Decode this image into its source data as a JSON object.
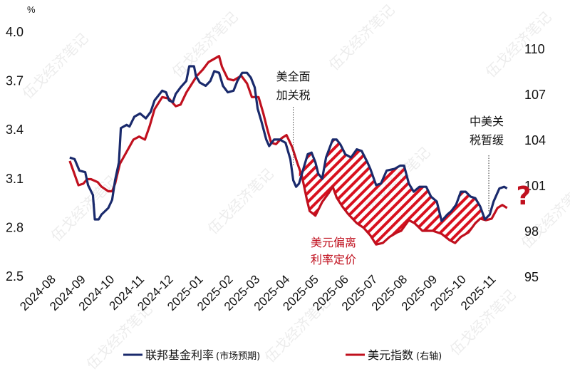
{
  "chart_data": {
    "type": "line",
    "unit_left": "%",
    "left_axis": {
      "ylim": [
        2.5,
        4.0
      ],
      "ticks": [
        "2.5",
        "2.8",
        "3.1",
        "3.4",
        "3.7",
        "4.0"
      ]
    },
    "right_axis": {
      "ylim": [
        95,
        110
      ],
      "ticks": [
        "95",
        "98",
        "101",
        "104",
        "107",
        "110"
      ]
    },
    "x_ticks": [
      "2024-08",
      "2024-09",
      "2024-10",
      "2024-11",
      "2024-12",
      "2025-01",
      "2025-02",
      "2025-03",
      "2025-04",
      "2025-05",
      "2025-06",
      "2025-07",
      "2025-08",
      "2025-09",
      "2025-10",
      "2025-11"
    ],
    "grid": false,
    "legend_position": "bottom",
    "series": [
      {
        "name": "联邦基金利率",
        "name_suffix": "(市场预期)",
        "axis": "left",
        "color": "#1a2a6c",
        "points": [
          [
            "2024-08-15",
            3.23
          ],
          [
            "2024-08-20",
            3.22
          ],
          [
            "2024-08-25",
            3.15
          ],
          [
            "2024-08-31",
            3.14
          ],
          [
            "2024-09-03",
            3.06
          ],
          [
            "2024-09-08",
            3.0
          ],
          [
            "2024-09-10",
            2.85
          ],
          [
            "2024-09-14",
            2.85
          ],
          [
            "2024-09-17",
            2.88
          ],
          [
            "2024-09-24",
            2.92
          ],
          [
            "2024-09-28",
            2.97
          ],
          [
            "2024-10-01",
            3.09
          ],
          [
            "2024-10-05",
            3.2
          ],
          [
            "2024-10-07",
            3.41
          ],
          [
            "2024-10-13",
            3.43
          ],
          [
            "2024-10-16",
            3.42
          ],
          [
            "2024-10-21",
            3.48
          ],
          [
            "2024-10-27",
            3.5
          ],
          [
            "2024-11-02",
            3.47
          ],
          [
            "2024-11-07",
            3.51
          ],
          [
            "2024-11-11",
            3.58
          ],
          [
            "2024-11-19",
            3.64
          ],
          [
            "2024-11-23",
            3.63
          ],
          [
            "2024-11-26",
            3.58
          ],
          [
            "2024-11-30",
            3.57
          ],
          [
            "2024-12-03",
            3.62
          ],
          [
            "2024-12-08",
            3.66
          ],
          [
            "2024-12-14",
            3.7
          ],
          [
            "2024-12-17",
            3.79
          ],
          [
            "2024-12-22",
            3.79
          ],
          [
            "2024-12-24",
            3.73
          ],
          [
            "2024-12-28",
            3.69
          ],
          [
            "2025-01-03",
            3.67
          ],
          [
            "2025-01-08",
            3.7
          ],
          [
            "2025-01-12",
            3.76
          ],
          [
            "2025-01-17",
            3.75
          ],
          [
            "2025-01-21",
            3.67
          ],
          [
            "2025-01-26",
            3.63
          ],
          [
            "2025-02-01",
            3.64
          ],
          [
            "2025-02-05",
            3.7
          ],
          [
            "2025-02-10",
            3.75
          ],
          [
            "2025-02-15",
            3.75
          ],
          [
            "2025-02-19",
            3.72
          ],
          [
            "2025-02-23",
            3.66
          ],
          [
            "2025-02-26",
            3.53
          ],
          [
            "2025-03-02",
            3.45
          ],
          [
            "2025-03-07",
            3.34
          ],
          [
            "2025-03-10",
            3.3
          ],
          [
            "2025-03-15",
            3.34
          ],
          [
            "2025-03-21",
            3.34
          ],
          [
            "2025-03-27",
            3.32
          ],
          [
            "2025-04-01",
            3.22
          ],
          [
            "2025-04-04",
            3.09
          ],
          [
            "2025-04-07",
            3.05
          ],
          [
            "2025-04-10",
            3.07
          ],
          [
            "2025-04-16",
            3.19
          ],
          [
            "2025-04-19",
            3.25
          ],
          [
            "2025-04-23",
            3.26
          ],
          [
            "2025-04-27",
            3.2
          ],
          [
            "2025-04-30",
            3.13
          ],
          [
            "2025-05-04",
            3.1
          ],
          [
            "2025-05-08",
            3.23
          ],
          [
            "2025-05-15",
            3.34
          ],
          [
            "2025-05-19",
            3.34
          ],
          [
            "2025-05-23",
            3.31
          ],
          [
            "2025-05-28",
            3.25
          ],
          [
            "2025-06-03",
            3.23
          ],
          [
            "2025-06-09",
            3.28
          ],
          [
            "2025-06-14",
            3.27
          ],
          [
            "2025-06-20",
            3.2
          ],
          [
            "2025-06-23",
            3.16
          ],
          [
            "2025-06-29",
            3.06
          ],
          [
            "2025-07-04",
            3.07
          ],
          [
            "2025-07-10",
            3.15
          ],
          [
            "2025-07-18",
            3.16
          ],
          [
            "2025-07-24",
            3.18
          ],
          [
            "2025-07-28",
            3.18
          ],
          [
            "2025-08-02",
            3.07
          ],
          [
            "2025-08-07",
            3.02
          ],
          [
            "2025-08-13",
            3.05
          ],
          [
            "2025-08-20",
            3.05
          ],
          [
            "2025-08-25",
            2.99
          ],
          [
            "2025-08-31",
            2.96
          ],
          [
            "2025-09-05",
            2.84
          ],
          [
            "2025-09-11",
            2.88
          ],
          [
            "2025-09-15",
            2.9
          ],
          [
            "2025-09-20",
            2.94
          ],
          [
            "2025-09-25",
            3.02
          ],
          [
            "2025-09-30",
            3.02
          ],
          [
            "2025-10-05",
            2.99
          ],
          [
            "2025-10-10",
            2.98
          ],
          [
            "2025-10-15",
            2.93
          ],
          [
            "2025-10-20",
            2.85
          ],
          [
            "2025-10-25",
            2.88
          ],
          [
            "2025-10-29",
            2.96
          ],
          [
            "2025-11-04",
            3.04
          ],
          [
            "2025-11-09",
            3.05
          ],
          [
            "2025-11-12",
            3.04
          ]
        ]
      },
      {
        "name": "美元指数",
        "name_suffix": "(右轴)",
        "axis": "right",
        "color": "#c0101e",
        "points": [
          [
            "2024-08-15",
            102.6
          ],
          [
            "2024-08-19",
            101.9
          ],
          [
            "2024-08-24",
            101.0
          ],
          [
            "2024-08-29",
            101.1
          ],
          [
            "2024-09-02",
            101.4
          ],
          [
            "2024-09-06",
            101.4
          ],
          [
            "2024-09-13",
            101.2
          ],
          [
            "2024-09-17",
            100.9
          ],
          [
            "2024-09-24",
            100.6
          ],
          [
            "2024-09-28",
            100.6
          ],
          [
            "2024-10-01",
            101.1
          ],
          [
            "2024-10-06",
            102.4
          ],
          [
            "2024-10-13",
            103.2
          ],
          [
            "2024-10-20",
            104.0
          ],
          [
            "2024-10-26",
            104.2
          ],
          [
            "2024-11-01",
            104.0
          ],
          [
            "2024-11-06",
            104.9
          ],
          [
            "2024-11-11",
            106.0
          ],
          [
            "2024-11-19",
            106.8
          ],
          [
            "2024-11-26",
            106.7
          ],
          [
            "2024-12-03",
            106.2
          ],
          [
            "2024-12-08",
            106.3
          ],
          [
            "2024-12-14",
            107.1
          ],
          [
            "2024-12-20",
            107.7
          ],
          [
            "2024-12-25",
            108.2
          ],
          [
            "2024-12-31",
            108.6
          ],
          [
            "2025-01-06",
            109.1
          ],
          [
            "2025-01-17",
            109.5
          ],
          [
            "2025-01-20",
            108.8
          ],
          [
            "2025-01-26",
            108.0
          ],
          [
            "2025-02-01",
            107.9
          ],
          [
            "2025-02-09",
            108.2
          ],
          [
            "2025-02-15",
            107.7
          ],
          [
            "2025-02-20",
            106.8
          ],
          [
            "2025-02-27",
            106.8
          ],
          [
            "2025-03-04",
            105.7
          ],
          [
            "2025-03-08",
            104.7
          ],
          [
            "2025-03-12",
            103.8
          ],
          [
            "2025-03-17",
            103.7
          ],
          [
            "2025-03-23",
            104.1
          ],
          [
            "2025-03-28",
            104.3
          ],
          [
            "2025-04-03",
            103.5
          ],
          [
            "2025-04-08",
            102.5
          ],
          [
            "2025-04-13",
            101.6
          ],
          [
            "2025-04-18",
            100.1
          ],
          [
            "2025-04-21",
            99.3
          ],
          [
            "2025-04-27",
            99.0
          ],
          [
            "2025-05-04",
            99.9
          ],
          [
            "2025-05-11",
            100.5
          ],
          [
            "2025-05-15",
            100.9
          ],
          [
            "2025-05-19",
            100.2
          ],
          [
            "2025-05-25",
            99.6
          ],
          [
            "2025-05-31",
            99.1
          ],
          [
            "2025-06-09",
            98.5
          ],
          [
            "2025-06-16",
            98.2
          ],
          [
            "2025-06-23",
            97.7
          ],
          [
            "2025-06-29",
            97.1
          ],
          [
            "2025-07-06",
            97.2
          ],
          [
            "2025-07-13",
            97.6
          ],
          [
            "2025-07-21",
            97.9
          ],
          [
            "2025-07-25",
            98.0
          ],
          [
            "2025-08-02",
            98.7
          ],
          [
            "2025-08-08",
            98.5
          ],
          [
            "2025-08-16",
            98.0
          ],
          [
            "2025-08-27",
            98.0
          ],
          [
            "2025-09-05",
            97.8
          ],
          [
            "2025-09-13",
            97.4
          ],
          [
            "2025-09-19",
            97.2
          ],
          [
            "2025-09-25",
            97.6
          ],
          [
            "2025-10-03",
            97.9
          ],
          [
            "2025-10-10",
            98.5
          ],
          [
            "2025-10-15",
            98.8
          ],
          [
            "2025-10-21",
            98.7
          ],
          [
            "2025-10-27",
            98.8
          ],
          [
            "2025-11-02",
            99.5
          ],
          [
            "2025-11-07",
            99.7
          ],
          [
            "2025-11-12",
            99.5
          ]
        ]
      }
    ],
    "shaded_region": {
      "from": "2025-04-10",
      "to": "2025-10-20",
      "style": "red diagonal hatch between series",
      "label": "美元偏离利率定价"
    },
    "annotations": [
      {
        "text_line1": "美全面",
        "text_line2": "加关税",
        "date": "2025-04-04"
      },
      {
        "text_line1": "中美关",
        "text_line2": "税暂缓",
        "date": "2025-10-24"
      }
    ],
    "question_mark": "?"
  },
  "watermark": "伍戈经济笔记"
}
